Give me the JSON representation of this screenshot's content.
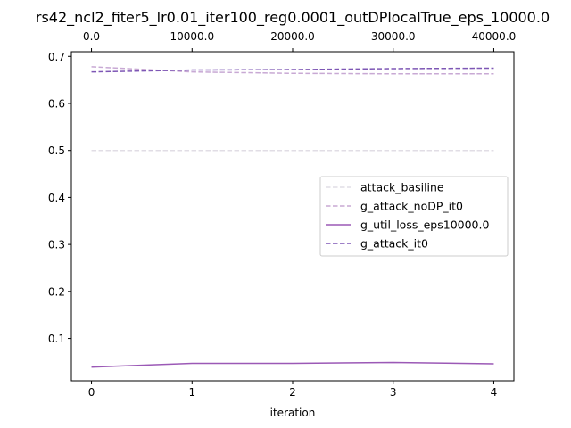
{
  "chart_data": {
    "type": "line",
    "title": "rs42_ncl2_fiter5_lr0.01_iter100_reg0.0001_outDPlocalTrue_eps_10000.0",
    "xlabel": "iteration",
    "ylabel": "",
    "x": [
      0,
      1,
      2,
      3,
      4
    ],
    "xlim": [
      -0.2,
      4.2
    ],
    "ylim": [
      0.01,
      0.71
    ],
    "x_ticks": [
      "0",
      "1",
      "2",
      "3",
      "4"
    ],
    "y_ticks": [
      "0.1",
      "0.2",
      "0.3",
      "0.4",
      "0.5",
      "0.6",
      "0.7"
    ],
    "top_axis": {
      "ticks": [
        0,
        10000,
        20000,
        30000,
        40000
      ],
      "tick_labels": [
        "0.0",
        "10000.0",
        "20000.0",
        "30000.0",
        "40000.0"
      ],
      "scale_per_iteration": 10000
    },
    "grid": false,
    "legend_position": "center-right",
    "series": [
      {
        "name": "attack_basiline",
        "values": [
          0.5,
          0.5,
          0.5,
          0.5,
          0.5
        ],
        "color": "#e1dde5",
        "dash": "dashed"
      },
      {
        "name": "g_attack_noDP_it0",
        "values": [
          0.678,
          0.667,
          0.664,
          0.663,
          0.663
        ],
        "color": "#c8a9d4",
        "dash": "dashed"
      },
      {
        "name": "g_util_loss_eps10000.0",
        "values": [
          0.039,
          0.047,
          0.047,
          0.049,
          0.046
        ],
        "color": "#9b59b6",
        "dash": "solid"
      },
      {
        "name": "g_attack_it0",
        "values": [
          0.667,
          0.671,
          0.672,
          0.674,
          0.675
        ],
        "color": "#7e57b5",
        "dash": "dashed"
      }
    ]
  }
}
